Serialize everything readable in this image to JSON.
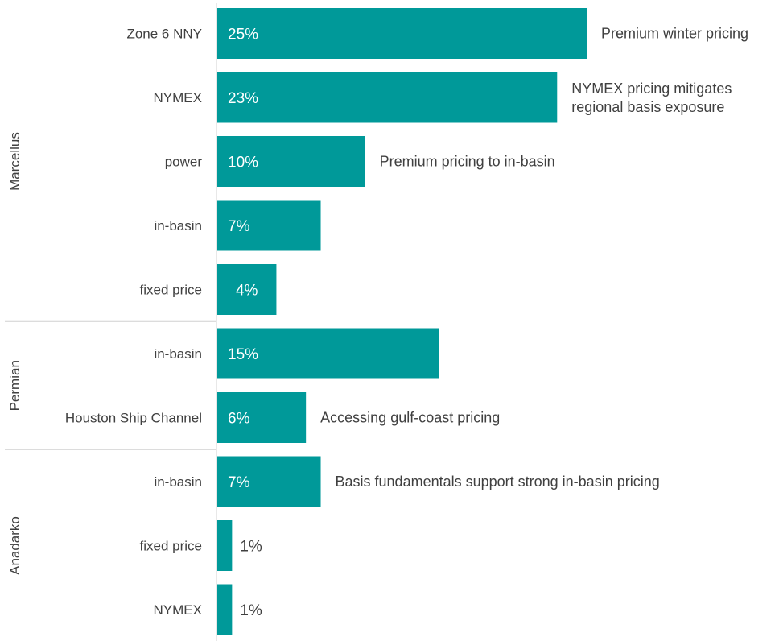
{
  "chart_data": {
    "type": "bar",
    "orientation": "horizontal",
    "bar_color": "#009999",
    "xlim": [
      0,
      25
    ],
    "groups": [
      {
        "name": "Marcellus",
        "bars": [
          {
            "category": "Zone 6 NNY",
            "value": 25,
            "value_label": "25%",
            "annotation": [
              "Premium winter pricing"
            ]
          },
          {
            "category": "NYMEX",
            "value": 23,
            "value_label": "23%",
            "annotation": [
              "NYMEX pricing mitigates",
              "regional basis exposure"
            ]
          },
          {
            "category": "power",
            "value": 10,
            "value_label": "10%",
            "annotation": [
              "Premium pricing to in-basin"
            ]
          },
          {
            "category": "in-basin",
            "value": 7,
            "value_label": "7%",
            "annotation": []
          },
          {
            "category": "fixed price",
            "value": 4,
            "value_label": "4%",
            "annotation": []
          }
        ]
      },
      {
        "name": "Permian",
        "bars": [
          {
            "category": "in-basin",
            "value": 15,
            "value_label": "15%",
            "annotation": []
          },
          {
            "category": "Houston Ship Channel",
            "value": 6,
            "value_label": "6%",
            "annotation": [
              "Accessing gulf-coast pricing"
            ]
          }
        ]
      },
      {
        "name": "Anadarko",
        "bars": [
          {
            "category": "in-basin",
            "value": 7,
            "value_label": "7%",
            "annotation": [
              "Basis fundamentals support strong in-basin pricing"
            ]
          },
          {
            "category": "fixed price",
            "value": 1,
            "value_label": "1%",
            "annotation": []
          },
          {
            "category": "NYMEX",
            "value": 1,
            "value_label": "1%",
            "annotation": []
          }
        ]
      }
    ]
  }
}
